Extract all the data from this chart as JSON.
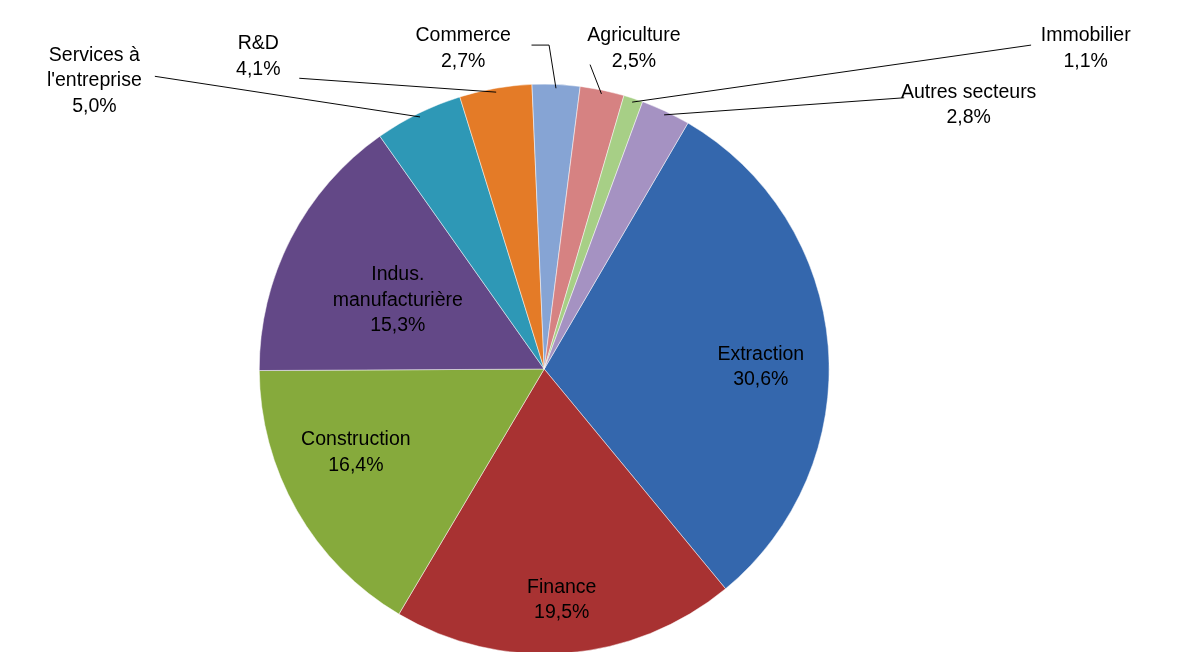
{
  "chart_data": {
    "type": "pie",
    "categories": [
      "Extraction",
      "Finance",
      "Construction",
      "Indus. manufacturière",
      "Services à l'entreprise",
      "R&D",
      "Commerce",
      "Agriculture",
      "Immobilier",
      "Autres secteurs"
    ],
    "values": [
      30.6,
      19.5,
      16.4,
      15.3,
      5.0,
      4.1,
      2.7,
      2.5,
      1.1,
      2.8
    ],
    "value_labels": [
      "30,6%",
      "19,5%",
      "16,4%",
      "15,3%",
      "5,0%",
      "4,1%",
      "2,7%",
      "2,5%",
      "1,1%",
      "2,8%"
    ],
    "colors": [
      "#3467ad",
      "#a83232",
      "#86aa3c",
      "#634887",
      "#2e98b6",
      "#e47b27",
      "#86a4d4",
      "#d68282",
      "#a7cf86",
      "#a592c2"
    ]
  }
}
